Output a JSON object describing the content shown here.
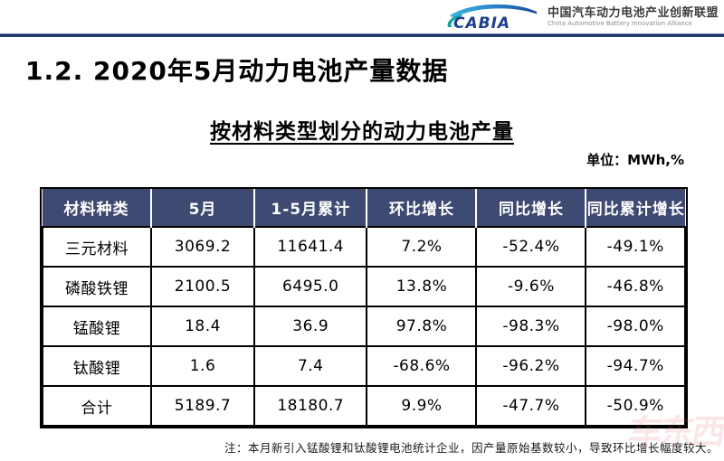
{
  "header": {
    "logo_text": "CABIA",
    "org_name_cn": "中国汽车动力电池产业创新联盟",
    "org_name_en": "China Automotive Battery Innovation Alliance"
  },
  "title": "1.2.  2020年5月动力电池产量数据",
  "subtitle": "按材料类型划分的动力电池产量",
  "unit_label": "单位：MWh,%",
  "table": {
    "header_bg": "#3E4A72",
    "headers": [
      "材料种类",
      "5月",
      "1-5月累计",
      "环比增长",
      "同比增长",
      "同比累计增长"
    ],
    "rows": [
      [
        "三元材料",
        "3069.2",
        "11641.4",
        "7.2%",
        "-52.4%",
        "-49.1%"
      ],
      [
        "磷酸铁锂",
        "2100.5",
        "6495.0",
        "13.8%",
        "-9.6%",
        "-46.8%"
      ],
      [
        "锰酸锂",
        "18.4",
        "36.9",
        "97.8%",
        "-98.3%",
        "-98.0%"
      ],
      [
        "钛酸锂",
        "1.6",
        "7.4",
        "-68.6%",
        "-96.2%",
        "-94.7%"
      ],
      [
        "合计",
        "5189.7",
        "18180.7",
        "9.9%",
        "-47.7%",
        "-50.9%"
      ]
    ]
  },
  "note": "注：本月新引入锰酸锂和钛酸锂电池统计企业，因产量原始基数较小，导致环比增长幅度较大。",
  "watermark": "车东西",
  "chart_data": {
    "type": "table",
    "title": "按材料类型划分的动力电池产量",
    "unit": "MWh,%",
    "columns": [
      "材料种类",
      "5月",
      "1-5月累计",
      "环比增长",
      "同比增长",
      "同比累计增长"
    ],
    "rows": [
      {
        "材料种类": "三元材料",
        "5月": 3069.2,
        "1-5月累计": 11641.4,
        "环比增长": "7.2%",
        "同比增长": "-52.4%",
        "同比累计增长": "-49.1%"
      },
      {
        "材料种类": "磷酸铁锂",
        "5月": 2100.5,
        "1-5月累计": 6495.0,
        "环比增长": "13.8%",
        "同比增长": "-9.6%",
        "同比累计增长": "-46.8%"
      },
      {
        "材料种类": "锰酸锂",
        "5月": 18.4,
        "1-5月累计": 36.9,
        "环比增长": "97.8%",
        "同比增长": "-98.3%",
        "同比累计增长": "-98.0%"
      },
      {
        "材料种类": "钛酸锂",
        "5月": 1.6,
        "1-5月累计": 7.4,
        "环比增长": "-68.6%",
        "同比增长": "-96.2%",
        "同比累计增长": "-94.7%"
      },
      {
        "材料种类": "合计",
        "5月": 5189.7,
        "1-5月累计": 18180.7,
        "环比增长": "9.9%",
        "同比增长": "-47.7%",
        "同比累计增长": "-50.9%"
      }
    ]
  }
}
